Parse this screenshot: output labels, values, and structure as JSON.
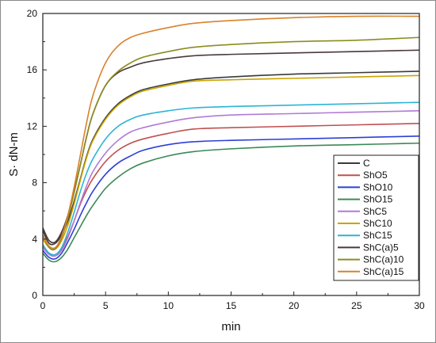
{
  "chart_data": {
    "type": "line",
    "xlabel": "min",
    "ylabel": "S· dN-m",
    "xlim": [
      0,
      30
    ],
    "ylim": [
      0,
      20
    ],
    "xticks": [
      0,
      5,
      10,
      15,
      20,
      25,
      30
    ],
    "yticks": [
      0,
      4,
      8,
      12,
      16,
      20
    ],
    "legend_position": "bottom-right",
    "series": [
      {
        "name": "C",
        "color": "#3a3a3a",
        "min_point": [
          0.6,
          3.6
        ],
        "plateau": 15.9,
        "values": [
          [
            0,
            4.6
          ],
          [
            0.5,
            3.7
          ],
          [
            1,
            3.7
          ],
          [
            1.5,
            4.3
          ],
          [
            2,
            5.3
          ],
          [
            2.5,
            6.7
          ],
          [
            3,
            8.3
          ],
          [
            3.5,
            9.9
          ],
          [
            4,
            11.1
          ],
          [
            5,
            12.6
          ],
          [
            6,
            13.6
          ],
          [
            7,
            14.2
          ],
          [
            8,
            14.6
          ],
          [
            10,
            15.0
          ],
          [
            12,
            15.3
          ],
          [
            15,
            15.5
          ],
          [
            20,
            15.7
          ],
          [
            25,
            15.8
          ],
          [
            30,
            15.9
          ]
        ]
      },
      {
        "name": "ShO5",
        "color": "#c05050",
        "min_point": [
          0.8,
          2.9
        ],
        "plateau": 12.2,
        "values": [
          [
            0,
            3.5
          ],
          [
            0.5,
            3.0
          ],
          [
            1,
            2.9
          ],
          [
            1.5,
            3.3
          ],
          [
            2,
            4.2
          ],
          [
            2.5,
            5.3
          ],
          [
            3,
            6.5
          ],
          [
            3.5,
            7.5
          ],
          [
            4,
            8.3
          ],
          [
            5,
            9.5
          ],
          [
            6,
            10.3
          ],
          [
            7,
            10.8
          ],
          [
            8,
            11.1
          ],
          [
            10,
            11.5
          ],
          [
            12,
            11.8
          ],
          [
            15,
            11.9
          ],
          [
            20,
            12.0
          ],
          [
            25,
            12.1
          ],
          [
            30,
            12.2
          ]
        ]
      },
      {
        "name": "ShO10",
        "color": "#2c3fd6",
        "min_point": [
          0.8,
          2.6
        ],
        "plateau": 11.3,
        "values": [
          [
            0,
            3.2
          ],
          [
            0.5,
            2.7
          ],
          [
            1,
            2.6
          ],
          [
            1.5,
            3.0
          ],
          [
            2,
            3.8
          ],
          [
            2.5,
            4.7
          ],
          [
            3,
            5.7
          ],
          [
            3.5,
            6.6
          ],
          [
            4,
            7.4
          ],
          [
            5,
            8.6
          ],
          [
            6,
            9.4
          ],
          [
            7,
            9.9
          ],
          [
            8,
            10.3
          ],
          [
            10,
            10.7
          ],
          [
            12,
            10.9
          ],
          [
            15,
            11.0
          ],
          [
            20,
            11.1
          ],
          [
            25,
            11.2
          ],
          [
            30,
            11.3
          ]
        ]
      },
      {
        "name": "ShO15",
        "color": "#3a8a55",
        "min_point": [
          0.8,
          2.4
        ],
        "plateau": 10.8,
        "values": [
          [
            0,
            3.0
          ],
          [
            0.5,
            2.5
          ],
          [
            1,
            2.4
          ],
          [
            1.5,
            2.7
          ],
          [
            2,
            3.3
          ],
          [
            2.5,
            4.1
          ],
          [
            3,
            4.9
          ],
          [
            3.5,
            5.7
          ],
          [
            4,
            6.4
          ],
          [
            5,
            7.6
          ],
          [
            6,
            8.4
          ],
          [
            7,
            9.0
          ],
          [
            8,
            9.4
          ],
          [
            10,
            9.9
          ],
          [
            12,
            10.2
          ],
          [
            15,
            10.4
          ],
          [
            20,
            10.6
          ],
          [
            25,
            10.7
          ],
          [
            30,
            10.8
          ]
        ]
      },
      {
        "name": "ShC5",
        "color": "#b07ad6",
        "min_point": [
          0.8,
          2.8
        ],
        "plateau": 13.1,
        "values": [
          [
            0,
            3.4
          ],
          [
            0.5,
            2.9
          ],
          [
            1,
            2.8
          ],
          [
            1.5,
            3.2
          ],
          [
            2,
            4.1
          ],
          [
            2.5,
            5.3
          ],
          [
            3,
            6.6
          ],
          [
            3.5,
            7.8
          ],
          [
            4,
            8.8
          ],
          [
            5,
            10.1
          ],
          [
            6,
            11.0
          ],
          [
            7,
            11.6
          ],
          [
            8,
            11.9
          ],
          [
            10,
            12.3
          ],
          [
            12,
            12.6
          ],
          [
            15,
            12.8
          ],
          [
            20,
            12.9
          ],
          [
            25,
            13.0
          ],
          [
            30,
            13.1
          ]
        ]
      },
      {
        "name": "ShC10",
        "color": "#c9a400",
        "min_point": [
          0.6,
          3.3
        ],
        "plateau": 15.6,
        "values": [
          [
            0,
            4.0
          ],
          [
            0.5,
            3.4
          ],
          [
            1,
            3.3
          ],
          [
            1.5,
            3.9
          ],
          [
            2,
            5.0
          ],
          [
            2.5,
            6.5
          ],
          [
            3,
            8.2
          ],
          [
            3.5,
            9.8
          ],
          [
            4,
            11.0
          ],
          [
            5,
            12.5
          ],
          [
            6,
            13.5
          ],
          [
            7,
            14.1
          ],
          [
            8,
            14.5
          ],
          [
            10,
            14.9
          ],
          [
            12,
            15.2
          ],
          [
            15,
            15.3
          ],
          [
            20,
            15.4
          ],
          [
            25,
            15.5
          ],
          [
            30,
            15.6
          ]
        ]
      },
      {
        "name": "ShC15",
        "color": "#2bb5d6",
        "min_point": [
          0.6,
          2.9
        ],
        "plateau": 13.7,
        "values": [
          [
            0,
            3.6
          ],
          [
            0.5,
            3.0
          ],
          [
            1,
            2.9
          ],
          [
            1.5,
            3.4
          ],
          [
            2,
            4.5
          ],
          [
            2.5,
            5.9
          ],
          [
            3,
            7.4
          ],
          [
            3.5,
            8.7
          ],
          [
            4,
            9.7
          ],
          [
            5,
            11.1
          ],
          [
            6,
            12.0
          ],
          [
            7,
            12.5
          ],
          [
            8,
            12.8
          ],
          [
            10,
            13.1
          ],
          [
            12,
            13.3
          ],
          [
            15,
            13.4
          ],
          [
            20,
            13.5
          ],
          [
            25,
            13.6
          ],
          [
            30,
            13.7
          ]
        ]
      },
      {
        "name": "ShC(a)5",
        "color": "#4a3a3a",
        "min_point": [
          0.6,
          3.8
        ],
        "plateau": 17.4,
        "values": [
          [
            0,
            4.8
          ],
          [
            0.5,
            3.9
          ],
          [
            1,
            3.8
          ],
          [
            1.5,
            4.5
          ],
          [
            2,
            5.7
          ],
          [
            2.5,
            7.4
          ],
          [
            3,
            9.3
          ],
          [
            3.5,
            11.3
          ],
          [
            4,
            12.9
          ],
          [
            5,
            14.9
          ],
          [
            6,
            15.8
          ],
          [
            7,
            16.2
          ],
          [
            8,
            16.5
          ],
          [
            10,
            16.8
          ],
          [
            12,
            17.0
          ],
          [
            15,
            17.1
          ],
          [
            20,
            17.2
          ],
          [
            25,
            17.3
          ],
          [
            30,
            17.4
          ]
        ]
      },
      {
        "name": "ShC(a)10",
        "color": "#8c8c1f",
        "min_point": [
          0.6,
          3.3
        ],
        "plateau": 18.3,
        "values": [
          [
            0,
            4.3
          ],
          [
            0.5,
            3.4
          ],
          [
            1,
            3.3
          ],
          [
            1.5,
            4.1
          ],
          [
            2,
            5.5
          ],
          [
            2.5,
            7.3
          ],
          [
            3,
            9.3
          ],
          [
            3.5,
            11.3
          ],
          [
            4,
            12.9
          ],
          [
            5,
            14.9
          ],
          [
            6,
            15.9
          ],
          [
            7,
            16.5
          ],
          [
            8,
            16.9
          ],
          [
            10,
            17.3
          ],
          [
            12,
            17.6
          ],
          [
            15,
            17.8
          ],
          [
            20,
            18.0
          ],
          [
            25,
            18.1
          ],
          [
            30,
            18.3
          ]
        ]
      },
      {
        "name": "ShC(a)15",
        "color": "#d9822b",
        "min_point": [
          0.6,
          3.4
        ],
        "plateau": 19.8,
        "values": [
          [
            0,
            4.3
          ],
          [
            0.5,
            3.5
          ],
          [
            1,
            3.4
          ],
          [
            1.5,
            4.2
          ],
          [
            2,
            5.7
          ],
          [
            2.5,
            7.7
          ],
          [
            3,
            10.0
          ],
          [
            3.5,
            12.3
          ],
          [
            4,
            14.2
          ],
          [
            5,
            16.5
          ],
          [
            6,
            17.7
          ],
          [
            7,
            18.3
          ],
          [
            8,
            18.6
          ],
          [
            10,
            19.0
          ],
          [
            12,
            19.3
          ],
          [
            15,
            19.5
          ],
          [
            20,
            19.7
          ],
          [
            25,
            19.8
          ],
          [
            30,
            19.8
          ]
        ]
      }
    ]
  }
}
